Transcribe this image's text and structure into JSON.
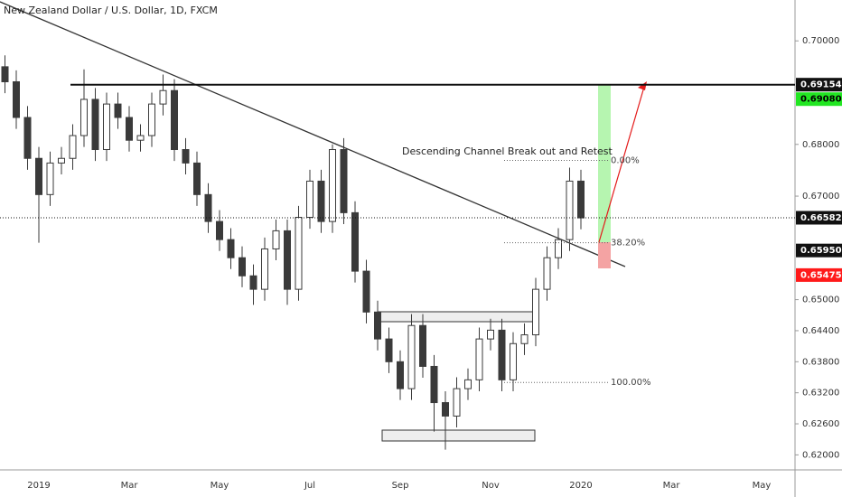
{
  "chart_data": {
    "type": "candlestick",
    "title": "New Zealand Dollar / U.S. Dollar, 1D, FXCM",
    "categories": [
      null,
      null,
      null,
      "2019",
      null,
      null,
      null,
      null,
      null,
      null,
      null,
      "Mar",
      null,
      null,
      null,
      null,
      null,
      null,
      null,
      "May",
      null,
      null,
      null,
      null,
      null,
      null,
      null,
      "Jul",
      null,
      null,
      null,
      null,
      null,
      null,
      null,
      "Sep",
      null,
      null,
      null,
      null,
      null,
      null,
      null,
      "Nov",
      null,
      null,
      null,
      null,
      null,
      null,
      null,
      "2020",
      null,
      null,
      null,
      null,
      null,
      null,
      null,
      "Mar",
      null,
      null,
      null,
      null,
      null,
      null,
      null,
      "May",
      null,
      null
    ],
    "open": [
      0.695,
      0.6921,
      0.6852,
      0.6773,
      0.6703,
      0.6764,
      0.6773,
      0.6817,
      0.6887,
      0.679,
      0.6878,
      0.6852,
      0.6808,
      0.6817,
      0.6878,
      0.6904,
      0.679,
      0.6764,
      0.6703,
      0.6651,
      0.6616,
      0.6581,
      0.6546,
      0.652,
      0.6598,
      0.6633,
      0.652,
      0.6659,
      0.6729,
      0.6651,
      0.679,
      0.6668,
      0.6555,
      0.6476,
      0.6424,
      0.638,
      0.6328,
      0.645,
      0.6371,
      0.6301,
      0.6275,
      0.6328,
      0.6345,
      0.6424,
      0.6441,
      0.6345,
      0.6415,
      0.6432,
      0.652,
      0.6581,
      0.6616,
      0.6729,
      null,
      null,
      null,
      null,
      null,
      null,
      null,
      null,
      null,
      null,
      null,
      null,
      null,
      null,
      null,
      null,
      null,
      null
    ],
    "high": [
      0.6972,
      0.6943,
      0.6874,
      0.6795,
      0.6786,
      0.6795,
      0.6839,
      0.6945,
      0.6909,
      0.69,
      0.69,
      0.6874,
      0.6839,
      0.69,
      0.6935,
      0.6926,
      0.6812,
      0.6786,
      0.6725,
      0.6673,
      0.6638,
      0.6603,
      0.6568,
      0.662,
      0.6655,
      0.6655,
      0.6681,
      0.6751,
      0.6751,
      0.68,
      0.6812,
      0.669,
      0.6577,
      0.6498,
      0.6446,
      0.6402,
      0.6472,
      0.6472,
      0.6393,
      0.6323,
      0.635,
      0.6367,
      0.6446,
      0.6463,
      0.6463,
      0.6437,
      0.6454,
      0.6542,
      0.6603,
      0.6638,
      0.6755,
      0.6751,
      null,
      null,
      null,
      null,
      null,
      null,
      null,
      null,
      null,
      null,
      null,
      null,
      null,
      null,
      null,
      null,
      null,
      null
    ],
    "low": [
      0.6899,
      0.683,
      0.6751,
      0.661,
      0.6681,
      0.6742,
      0.6751,
      0.6795,
      0.6768,
      0.6768,
      0.683,
      0.6786,
      0.6786,
      0.6795,
      0.6856,
      0.6768,
      0.6742,
      0.6681,
      0.6629,
      0.6594,
      0.6559,
      0.6524,
      0.649,
      0.6498,
      0.6576,
      0.649,
      0.6498,
      0.6637,
      0.6629,
      0.6629,
      0.6646,
      0.6533,
      0.6454,
      0.6402,
      0.6358,
      0.6306,
      0.6306,
      0.6349,
      0.6245,
      0.621,
      0.6253,
      0.6306,
      0.6323,
      0.6402,
      0.6323,
      0.6323,
      0.6393,
      0.641,
      0.6498,
      0.6559,
      0.6594,
      0.6636,
      null,
      null,
      null,
      null,
      null,
      null,
      null,
      null,
      null,
      null,
      null,
      null,
      null,
      null,
      null,
      null,
      null,
      null
    ],
    "close": [
      0.6921,
      0.6852,
      0.6773,
      0.6703,
      0.6764,
      0.6773,
      0.6817,
      0.6887,
      0.679,
      0.6878,
      0.6852,
      0.6808,
      0.6817,
      0.6878,
      0.6904,
      0.679,
      0.6764,
      0.6703,
      0.6651,
      0.6616,
      0.6581,
      0.6546,
      0.652,
      0.6598,
      0.6633,
      0.652,
      0.6659,
      0.6729,
      0.6651,
      0.679,
      0.6668,
      0.6555,
      0.6476,
      0.6424,
      0.638,
      0.6328,
      0.645,
      0.6371,
      0.6301,
      0.6275,
      0.6328,
      0.6345,
      0.6424,
      0.6441,
      0.6345,
      0.6415,
      0.6432,
      0.652,
      0.6581,
      0.6616,
      0.6729,
      0.6658,
      null,
      null,
      null,
      null,
      null,
      null,
      null,
      null,
      null,
      null,
      null,
      null,
      null,
      null,
      null,
      null,
      null,
      null
    ],
    "up_color": "#ffffff",
    "down_color": "#3a3a3a",
    "wick_color": "#3a3a3a",
    "ylim": [
      0.6171,
      0.7079
    ],
    "yticks": [
      {
        "value": 0.7,
        "label": "0.70000"
      },
      {
        "value": 0.68,
        "label": "0.68000"
      },
      {
        "value": 0.67,
        "label": "0.67000"
      },
      {
        "value": 0.65,
        "label": "0.65000"
      },
      {
        "value": 0.644,
        "label": "0.64400"
      },
      {
        "value": 0.638,
        "label": "0.63800"
      },
      {
        "value": 0.632,
        "label": "0.63200"
      },
      {
        "value": 0.626,
        "label": "0.62600"
      },
      {
        "value": 0.62,
        "label": "0.62000"
      }
    ],
    "price_labels": [
      {
        "value": 0.69154,
        "label": "0.69154",
        "color": "#111111",
        "line": "solid"
      },
      {
        "value": 0.6908,
        "label": "0.69080",
        "color": "#22e622"
      },
      {
        "value": 0.66582,
        "label": "0.66582",
        "color": "#111111",
        "line": "dotted"
      },
      {
        "value": 0.6595,
        "label": "0.65950",
        "color": "#111111"
      },
      {
        "value": 0.65475,
        "label": "0.65475",
        "color": "#ff1a1a"
      }
    ],
    "fib_levels": [
      {
        "label": "0.00%",
        "value": 0.6769
      },
      {
        "label": "38.20%",
        "value": 0.661
      },
      {
        "label": "100.00%",
        "value": 0.634
      }
    ],
    "annotation": "Descending Channel Break out and Retest"
  }
}
